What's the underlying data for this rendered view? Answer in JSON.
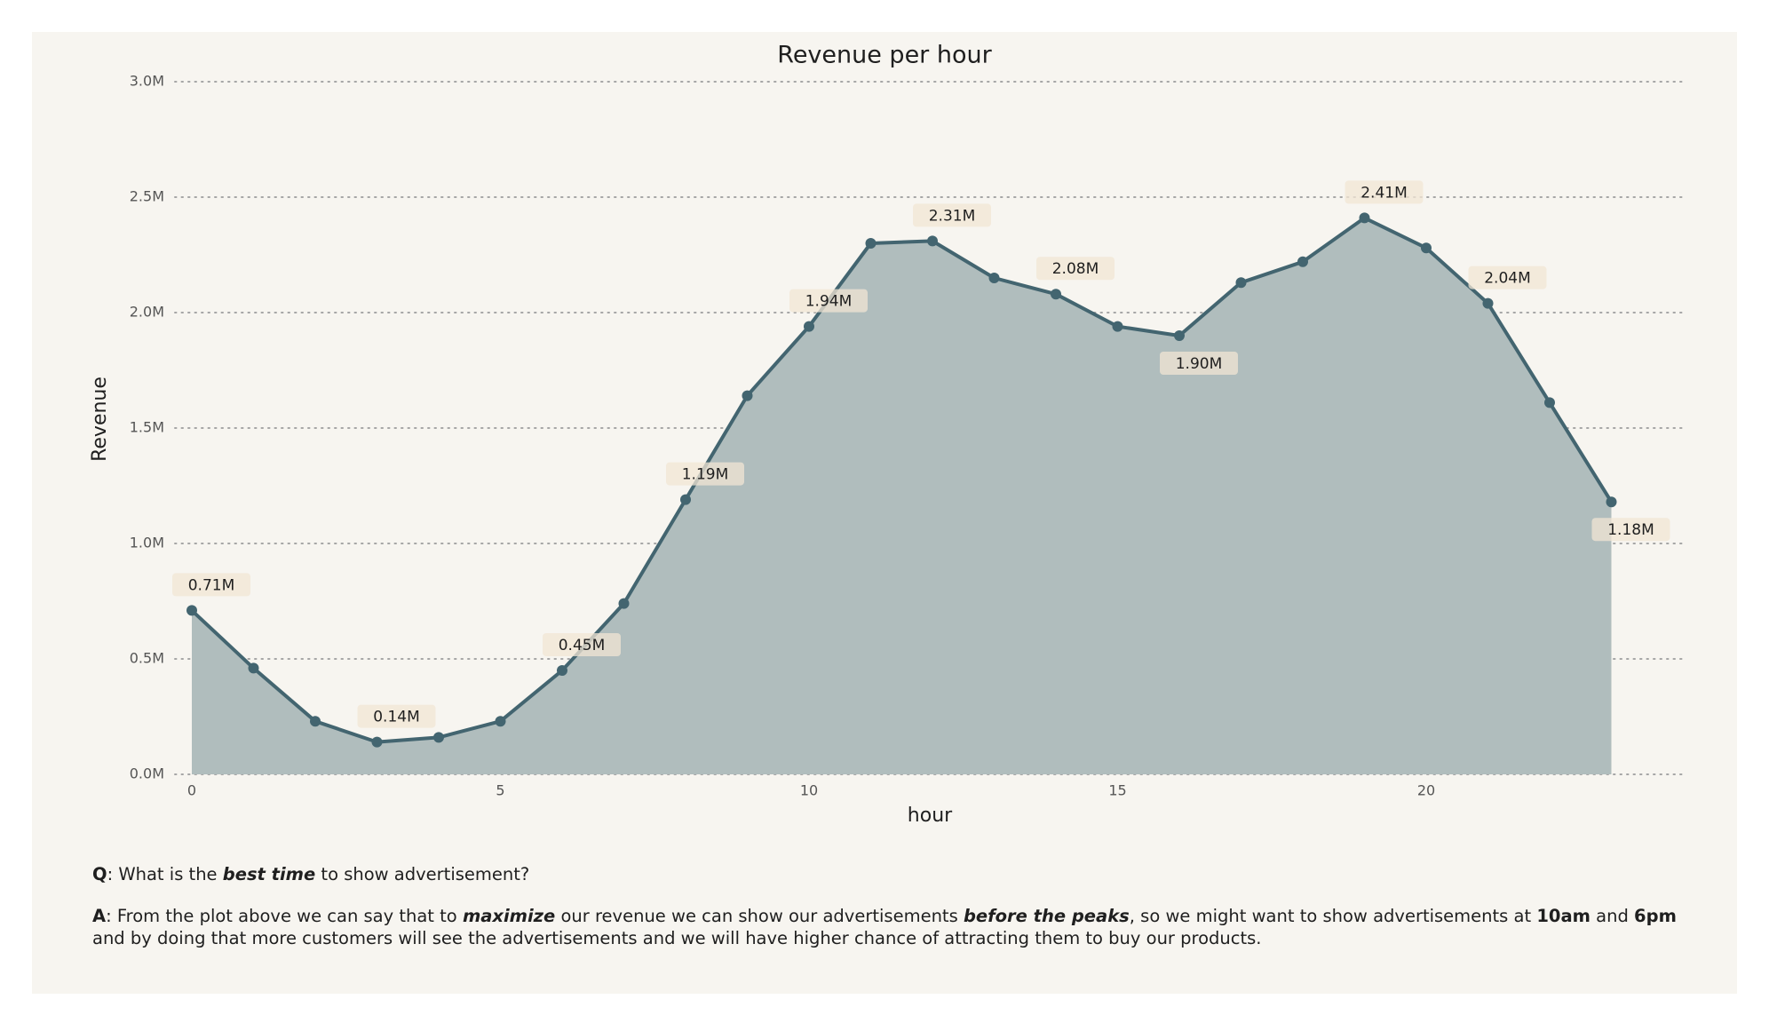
{
  "colors": {
    "background": "#f7f5f0",
    "line": "#436570",
    "fill": "#b0bdbd",
    "label_box": "#f2e6d4",
    "grid": "#a6a6a6",
    "text": "#1f1f1f",
    "tick_text": "#555555"
  },
  "chart_data": {
    "type": "area",
    "title": "Revenue per hour",
    "xlabel": "hour",
    "ylabel": "Revenue",
    "x": [
      0,
      1,
      2,
      3,
      4,
      5,
      6,
      7,
      8,
      9,
      10,
      11,
      12,
      13,
      14,
      15,
      16,
      17,
      18,
      19,
      20,
      21,
      22,
      23
    ],
    "values": [
      0.71,
      0.46,
      0.23,
      0.14,
      0.16,
      0.23,
      0.45,
      0.74,
      1.19,
      1.64,
      1.94,
      2.3,
      2.31,
      2.15,
      2.08,
      1.94,
      1.9,
      2.13,
      2.22,
      2.41,
      2.28,
      2.04,
      1.61,
      1.18
    ],
    "units": "M",
    "xlim": [
      -0.5,
      24.2
    ],
    "ylim": [
      0,
      3.0
    ],
    "x_ticks": [
      0,
      5,
      10,
      15,
      20
    ],
    "y_ticks": [
      0.0,
      0.5,
      1.0,
      1.5,
      2.0,
      2.5,
      3.0
    ],
    "y_tick_labels": [
      "0.0M",
      "0.5M",
      "1.0M",
      "1.5M",
      "2.0M",
      "2.5M",
      "3.0M"
    ],
    "grid": "horizontal-dotted",
    "annotations": [
      {
        "x": 0,
        "y": 0.71,
        "text": "0.71M",
        "placement": "above"
      },
      {
        "x": 3,
        "y": 0.14,
        "text": "0.14M",
        "placement": "above"
      },
      {
        "x": 6,
        "y": 0.45,
        "text": "0.45M",
        "placement": "above"
      },
      {
        "x": 8,
        "y": 1.19,
        "text": "1.19M",
        "placement": "above"
      },
      {
        "x": 10,
        "y": 1.94,
        "text": "1.94M",
        "placement": "above"
      },
      {
        "x": 12,
        "y": 2.31,
        "text": "2.31M",
        "placement": "above"
      },
      {
        "x": 14,
        "y": 2.08,
        "text": "2.08M",
        "placement": "above"
      },
      {
        "x": 16,
        "y": 1.9,
        "text": "1.90M",
        "placement": "below"
      },
      {
        "x": 19,
        "y": 2.41,
        "text": "2.41M",
        "placement": "above"
      },
      {
        "x": 21,
        "y": 2.04,
        "text": "2.04M",
        "placement": "above"
      },
      {
        "x": 23,
        "y": 1.18,
        "text": "1.18M",
        "placement": "below"
      }
    ]
  },
  "qa": {
    "q_label": "Q",
    "q_text_1": ": What is the ",
    "q_emph": "best time",
    "q_text_2": " to show advertisement?",
    "a_label": "A",
    "a_text_1": ": From the plot above we can say that to ",
    "a_emph_1": "maximize",
    "a_text_2": " our revenue we can show our advertisements ",
    "a_emph_2": "before the peaks",
    "a_text_3": ", so we might want to show advertisements at ",
    "a_bold_1": "10am",
    "a_text_4": " and ",
    "a_bold_2": "6pm",
    "a_text_5": " and by doing that more customers will see the advertisements and we will have higher chance of attracting them to buy our products."
  }
}
